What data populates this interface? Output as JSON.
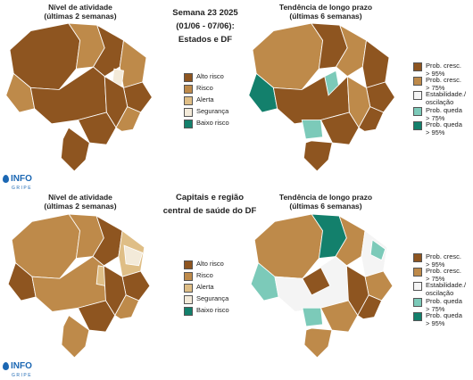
{
  "header": {
    "title_line1": "Semana 23 2025",
    "title_line2": "(01/06 - 07/06):",
    "title_line3": "Estados e DF"
  },
  "section2": {
    "title_line1": "Capitais e região",
    "title_line2": "central de saúde do DF"
  },
  "panels": {
    "activity_title_1": "Nível de atividade",
    "activity_title_2": "(últimas 2 semanas)",
    "trend_title_1": "Tendência de longo prazo",
    "trend_title_2": "(últimas 6 semanas)"
  },
  "activity_legend": [
    {
      "label": "Alto risco",
      "color": "#8e5520"
    },
    {
      "label": "Risco",
      "color": "#be8a4a"
    },
    {
      "label": "Alerta",
      "color": "#dfbe86"
    },
    {
      "label": "Segurança",
      "color": "#f3ead9"
    },
    {
      "label": "Baixo risco",
      "color": "#13806c"
    }
  ],
  "trend_legend": [
    {
      "label1": "Prob. cresc.",
      "label2": "> 95%",
      "color": "#8e5520"
    },
    {
      "label1": "Prob. cresc.",
      "label2": "> 75%",
      "color": "#be8a4a"
    },
    {
      "label1": "Estabilidade./",
      "label2": "oscilação",
      "color": "#f4f4f4"
    },
    {
      "label1": "Prob. queda",
      "label2": "> 75%",
      "color": "#7ccab9"
    },
    {
      "label1": "Prob. queda",
      "label2": "> 95%",
      "color": "#13806c"
    }
  ],
  "logo": {
    "text": "INFO",
    "sub": "GRIPE"
  }
}
